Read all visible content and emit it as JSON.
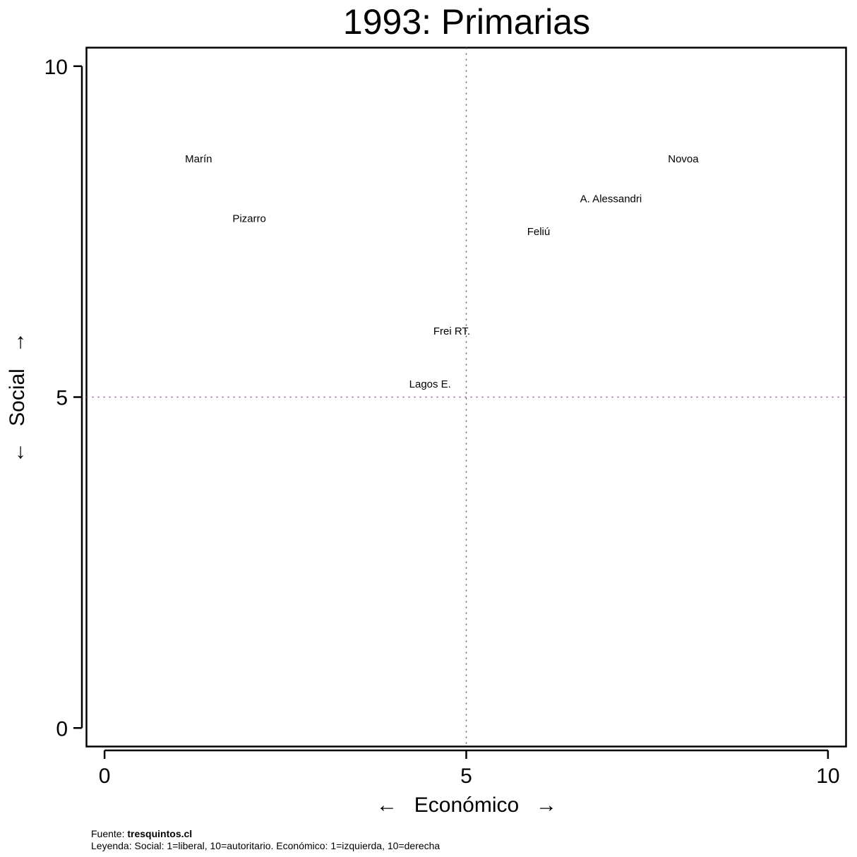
{
  "chart_data": {
    "type": "scatter",
    "title": "1993: Primarias",
    "xlabel": "Económico",
    "ylabel": "Social",
    "xlabel_left_arrow": "←",
    "xlabel_right_arrow": "→",
    "ylabel_down_arrow": "←",
    "ylabel_up_arrow": "→",
    "xlim": [
      -0.25,
      10.25
    ],
    "ylim": [
      -0.28,
      10.28
    ],
    "xticks": [
      0,
      5,
      10
    ],
    "yticks": [
      0,
      5,
      10
    ],
    "xtick_labels": [
      "0",
      "5",
      "10"
    ],
    "ytick_labels": [
      "0",
      "5",
      "10"
    ],
    "reference_lines": {
      "x": 5,
      "y": 5
    },
    "grid": false,
    "points": [
      {
        "label": "Marín",
        "x": 1.3,
        "y": 8.6
      },
      {
        "label": "Pizarro",
        "x": 2.0,
        "y": 7.7
      },
      {
        "label": "Novoa",
        "x": 8.0,
        "y": 8.6
      },
      {
        "label": "A. Alessandri",
        "x": 7.0,
        "y": 8.0
      },
      {
        "label": "Feliú",
        "x": 6.0,
        "y": 7.5
      },
      {
        "label": "Frei RT.",
        "x": 4.8,
        "y": 6.0
      },
      {
        "label": "Lagos E.",
        "x": 4.5,
        "y": 5.2
      }
    ],
    "colors": {
      "reference_x": "#555555",
      "reference_y": "#a040a0",
      "frame": "#000000"
    }
  },
  "footer": {
    "source_prefix": "Fuente: ",
    "source_name": "tresquintos.cl",
    "legend": "Leyenda: Social: 1=liberal, 10=autoritario. Económico: 1=izquierda, 10=derecha"
  }
}
